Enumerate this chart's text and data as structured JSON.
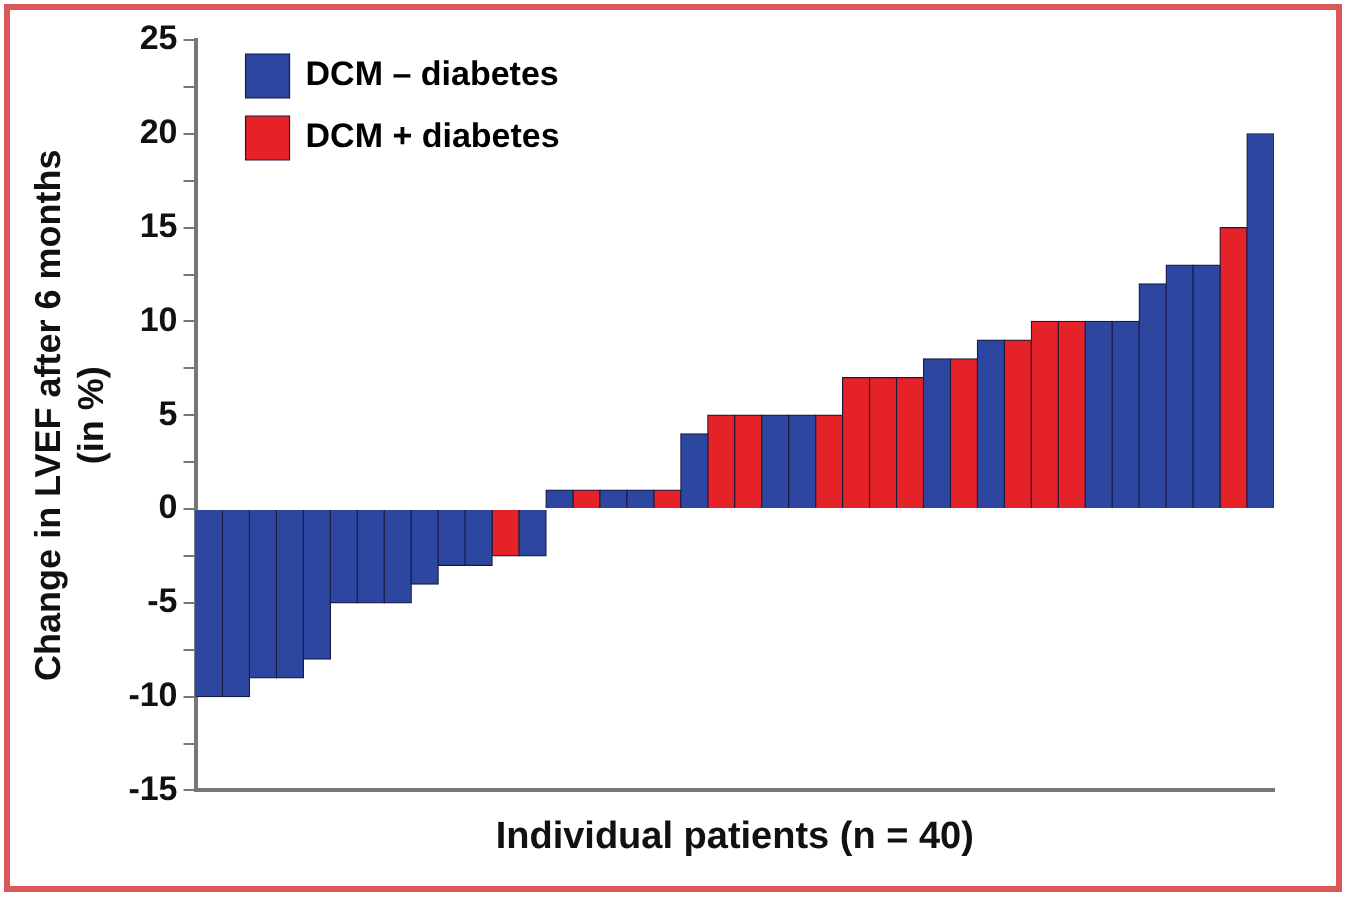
{
  "chart_data": {
    "type": "bar",
    "xlabel": "Individual patients (n = 40)",
    "ylabel": "Change in LVEF after 6 months\n(in %)",
    "categories": [
      null,
      null,
      null,
      null,
      null,
      null,
      null,
      null,
      null,
      null,
      null,
      null,
      null,
      null,
      null,
      null,
      null,
      null,
      null,
      null,
      null,
      null,
      null,
      null,
      null,
      null,
      null,
      null,
      null,
      null,
      null,
      null,
      null,
      null,
      null,
      null,
      null,
      null,
      null,
      null
    ],
    "series": [
      {
        "name": "DCM – diabetes",
        "color": "#2d47a0",
        "values": [
          -10,
          -10,
          -9,
          -9,
          -8,
          -5,
          -5,
          -5,
          -4,
          -3,
          -3,
          null,
          -2.5,
          1,
          null,
          1,
          1,
          null,
          4,
          null,
          null,
          5,
          5,
          null,
          null,
          null,
          null,
          8,
          null,
          9,
          null,
          null,
          null,
          10,
          10,
          12,
          13,
          13,
          null,
          20
        ]
      },
      {
        "name": "DCM + diabetes",
        "color": "#e52228",
        "values": [
          null,
          null,
          null,
          null,
          null,
          null,
          null,
          null,
          null,
          null,
          null,
          -2.5,
          null,
          null,
          1,
          null,
          null,
          1,
          null,
          5,
          5,
          null,
          null,
          5,
          7,
          7,
          7,
          null,
          8,
          null,
          9,
          10,
          10,
          null,
          null,
          null,
          null,
          null,
          15,
          null
        ]
      }
    ],
    "ylim": [
      -15,
      25
    ],
    "yticks": [
      -15,
      {
        "value": -12.5,
        "label": null
      },
      -10,
      {
        "value": -7.5,
        "label": null
      },
      -5,
      {
        "value": -2.5,
        "label": null
      },
      0,
      {
        "value": 2.5,
        "label": null
      },
      5,
      {
        "value": 7.5,
        "label": null
      },
      10,
      {
        "value": 12.5,
        "label": null
      },
      15,
      {
        "value": 17.5,
        "label": null
      },
      20,
      {
        "value": 22.5,
        "label": null
      },
      25
    ],
    "grid": false,
    "legend": "top left"
  }
}
